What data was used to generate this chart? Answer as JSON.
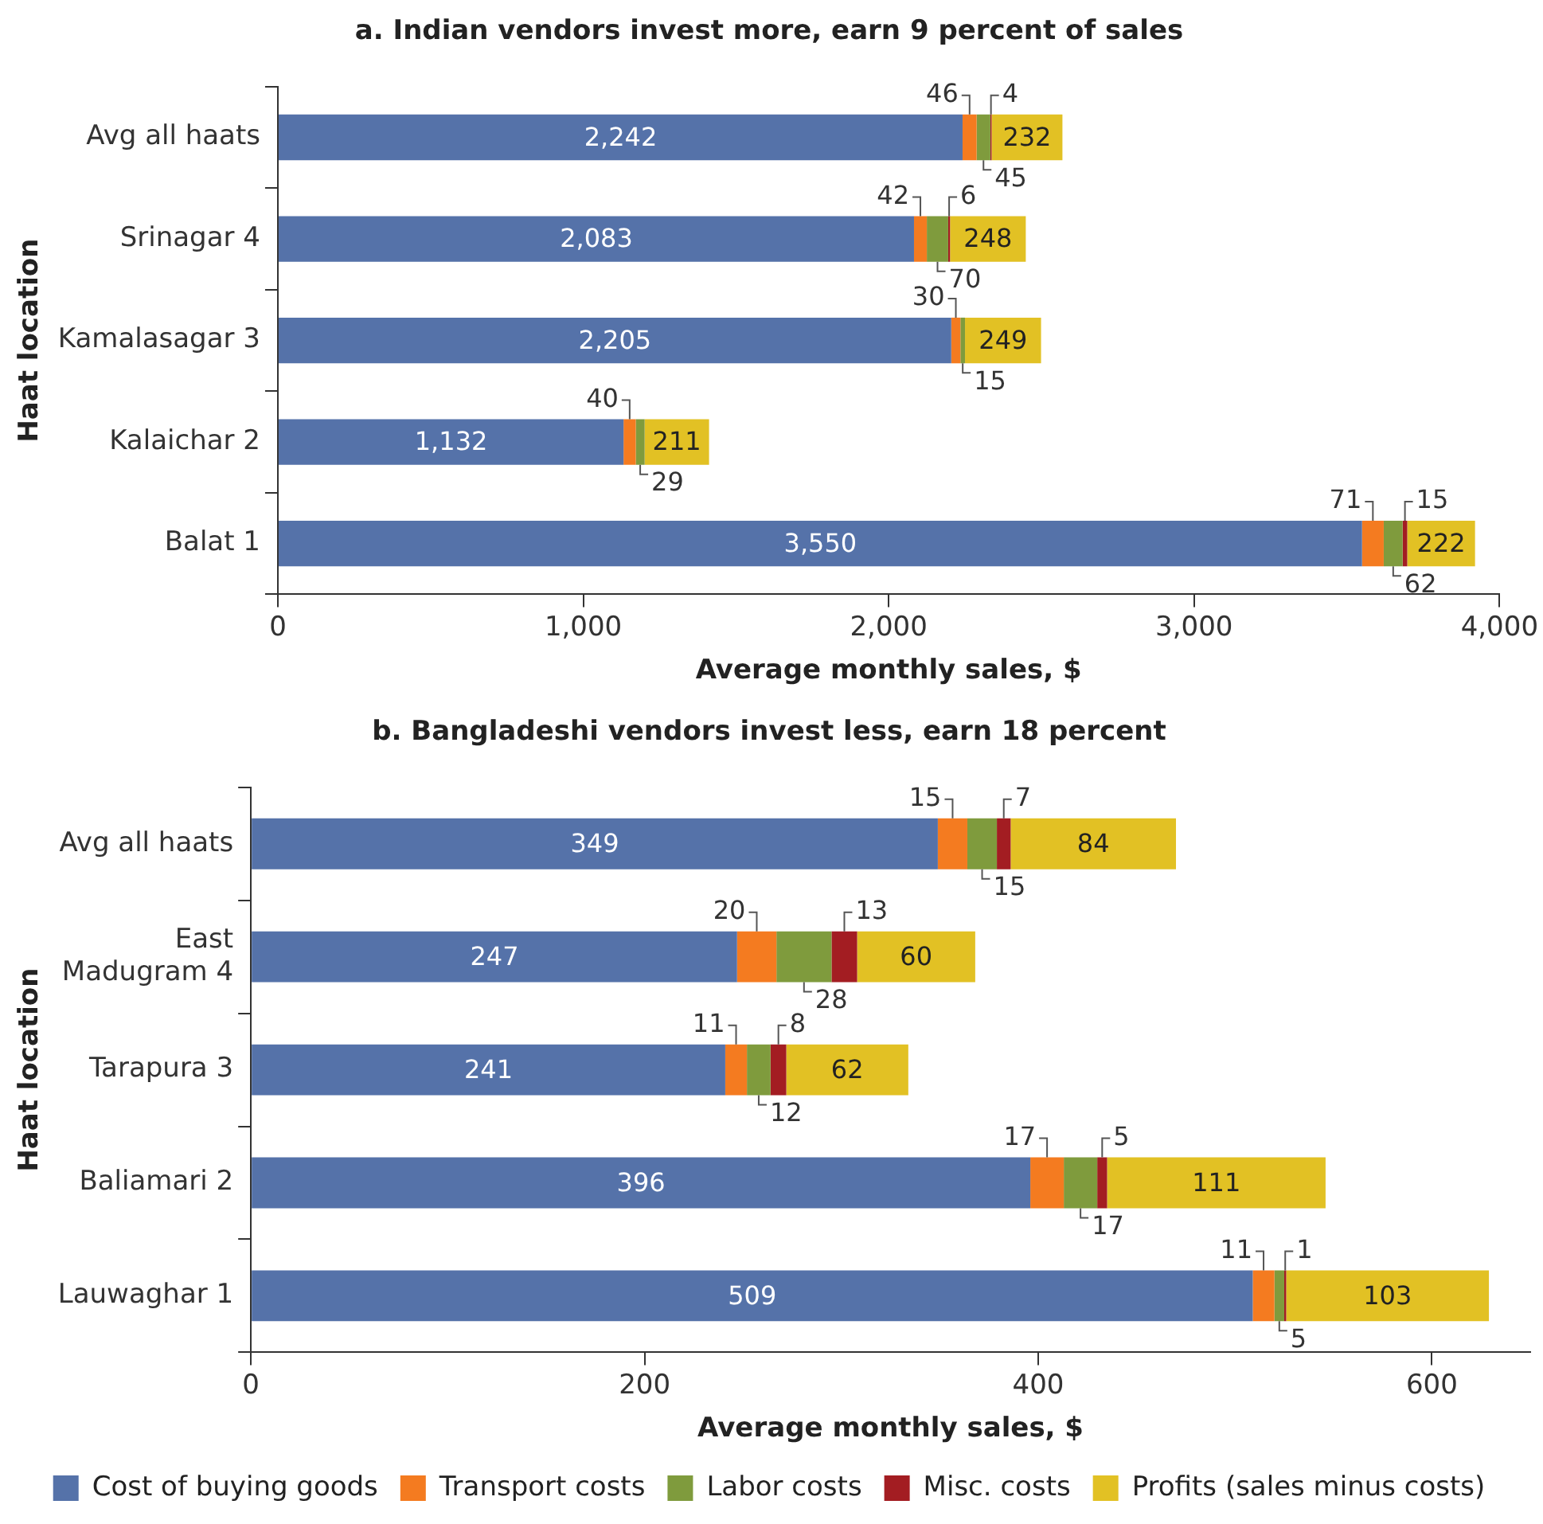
{
  "chart_data": [
    {
      "type": "bar",
      "orientation": "horizontal",
      "stacked": true,
      "title": "a. Indian vendors invest more, earn 9 percent of sales",
      "xlabel": "Average monthly sales, $",
      "ylabel": "Haat location",
      "categories": [
        "Avg all haats",
        "Srinagar 4",
        "Kamalasagar 3",
        "Kalaichar 2",
        "Balat 1"
      ],
      "xlim": [
        0,
        4000
      ],
      "xticks": [
        0,
        {
          "value": 1000,
          "label": "1,000"
        },
        {
          "value": 2000,
          "label": "2,000"
        },
        {
          "value": 3000,
          "label": "3,000"
        },
        {
          "value": 4000,
          "label": "4,000"
        }
      ],
      "grid": false,
      "legend": false,
      "series": [
        {
          "color": "#5572a9",
          "values": [
            2242,
            2083,
            2205,
            1132,
            3550
          ],
          "value_labels": [
            "2,242",
            "2,083",
            "2,205",
            "1,132",
            "3,550"
          ]
        },
        {
          "color": "#f47b20",
          "values": [
            46,
            42,
            30,
            40,
            71
          ],
          "value_labels": [
            "46",
            "42",
            "30",
            "40",
            "71"
          ]
        },
        {
          "color": "#7f9b3d",
          "values": [
            45,
            70,
            15,
            29,
            62
          ],
          "value_labels": [
            "45",
            "70",
            "15",
            "29",
            "62"
          ]
        },
        {
          "color": "#a31d22",
          "values": [
            4,
            6,
            null,
            null,
            15
          ],
          "value_labels": [
            "4",
            "6",
            null,
            null,
            "15"
          ]
        },
        {
          "color": "#e2c124",
          "values": [
            232,
            248,
            249,
            211,
            222
          ],
          "value_labels": [
            "232",
            "248",
            "249",
            "211",
            "222"
          ]
        }
      ]
    },
    {
      "type": "bar",
      "orientation": "horizontal",
      "stacked": true,
      "title": "b. Bangladeshi vendors invest less, earn 18 percent",
      "xlabel": "Average monthly sales, $",
      "ylabel": "Haat location",
      "categories": [
        "Avg all haats",
        "East Madugram 4",
        "Tarapura 3",
        "Baliamari 2",
        "Lauwaghar 1"
      ],
      "xlim": [
        0,
        650
      ],
      "xticks": [
        0,
        200,
        400,
        600
      ],
      "grid": false,
      "legend": "bottom",
      "series": [
        {
          "name": "Cost of buying goods",
          "color": "#5572a9",
          "values": [
            349,
            247,
            241,
            396,
            509
          ],
          "value_labels": [
            "349",
            "247",
            "241",
            "396",
            "509"
          ]
        },
        {
          "name": "Transport costs",
          "color": "#f47b20",
          "values": [
            15,
            20,
            11,
            17,
            11
          ],
          "value_labels": [
            "15",
            "20",
            "11",
            "17",
            "11"
          ]
        },
        {
          "name": "Labor costs",
          "color": "#7f9b3d",
          "values": [
            15,
            28,
            12,
            17,
            5
          ],
          "value_labels": [
            "15",
            "28",
            "12",
            "17",
            "5"
          ]
        },
        {
          "name": "Misc. costs",
          "color": "#a31d22",
          "values": [
            7,
            13,
            8,
            5,
            1
          ],
          "value_labels": [
            "7",
            "13",
            "8",
            "5",
            "1"
          ]
        },
        {
          "name": "Profits (sales minus costs)",
          "color": "#e2c124",
          "values": [
            84,
            60,
            62,
            111,
            103
          ],
          "value_labels": [
            "84",
            "60",
            "62",
            "111",
            "103"
          ]
        }
      ]
    }
  ]
}
